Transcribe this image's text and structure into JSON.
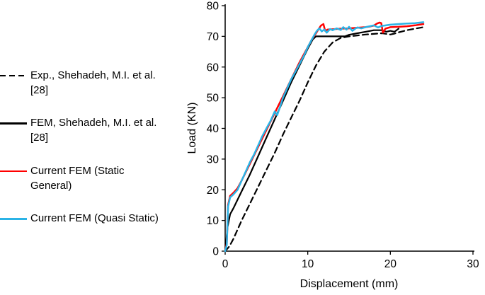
{
  "legend": {
    "items": [
      {
        "label": "Exp., Shehadeh, M.I. et al. [28]",
        "style": "dashed",
        "color": "#000000"
      },
      {
        "label": "FEM, Shehadeh, M.I. et al. [28]",
        "style": "solid",
        "color": "#000000"
      },
      {
        "label": "Current FEM (Static General)",
        "style": "solid",
        "color": "#ff0000"
      },
      {
        "label": "Current FEM (Quasi Static)",
        "style": "solid",
        "color": "#2bb3e6"
      }
    ]
  },
  "chart_data": {
    "type": "line",
    "title": "",
    "xlabel": "Displacement (mm)",
    "ylabel": "Load (KN)",
    "xlim": [
      0,
      30
    ],
    "ylim": [
      0,
      80
    ],
    "xticks": [
      0,
      10,
      20,
      30
    ],
    "yticks": [
      0,
      10,
      20,
      30,
      40,
      50,
      60,
      70,
      80
    ],
    "grid": false,
    "legend_position": "left",
    "series": [
      {
        "name": "Exp., Shehadeh, M.I. et al. [28]",
        "color": "#000000",
        "dash": "8 5",
        "width": 2.2,
        "x": [
          0,
          0.5,
          1,
          2,
          3,
          4,
          5,
          6,
          7,
          8,
          9,
          10,
          11,
          12,
          13,
          14,
          15,
          16,
          17,
          18,
          19,
          20,
          20.5,
          21,
          22,
          23,
          24
        ],
        "y": [
          0,
          1.5,
          4,
          10,
          15.5,
          21,
          26.5,
          32,
          38,
          43.5,
          49,
          55,
          60.5,
          65,
          68,
          69.5,
          70,
          70.3,
          70.6,
          70.8,
          71,
          70.6,
          70.9,
          71.3,
          72,
          72.5,
          73
        ]
      },
      {
        "name": "FEM, Shehadeh, M.I. et al. [28]",
        "color": "#000000",
        "dash": "",
        "width": 2.2,
        "x": [
          0,
          0.3,
          0.6,
          1,
          2,
          3,
          4,
          5,
          6,
          7,
          8,
          9,
          10,
          10.6,
          11,
          14.5,
          15,
          16,
          17,
          18,
          19,
          19.5,
          20,
          20.5,
          21
        ],
        "y": [
          0,
          8,
          12,
          14,
          19.5,
          25,
          31,
          37,
          43,
          49,
          55,
          60.5,
          66,
          69,
          70,
          70,
          70.5,
          71,
          71.5,
          72,
          72,
          71.5,
          71.8,
          71.5,
          72.5
        ]
      },
      {
        "name": "Current FEM (Static General)",
        "color": "#ff0000",
        "dash": "",
        "width": 2.5,
        "x": [
          0,
          0.2,
          0.35,
          0.6,
          1,
          1.5,
          2,
          3,
          4,
          5,
          6,
          7,
          8,
          9,
          10,
          10.5,
          11,
          11.3,
          11.6,
          11.9,
          12.1,
          12.4,
          13,
          14,
          15,
          16,
          17,
          17.5,
          18,
          18.4,
          18.7,
          18.9,
          19.1,
          19.4,
          20,
          21,
          22,
          23,
          24
        ],
        "y": [
          0,
          2.5,
          15,
          18,
          19,
          20.5,
          23,
          28.5,
          34,
          39.5,
          45,
          50.5,
          56,
          61.5,
          66.5,
          69,
          71,
          72.3,
          73.5,
          74,
          71.8,
          72.2,
          72.3,
          72.5,
          72.6,
          72.8,
          73,
          73.2,
          73.5,
          74.2,
          74.5,
          74.3,
          71.2,
          72.5,
          73,
          73.1,
          73.3,
          73.6,
          74
        ]
      },
      {
        "name": "Current FEM (Quasi Static)",
        "color": "#2bb3e6",
        "dash": "",
        "width": 2.5,
        "x": [
          0,
          0.2,
          0.35,
          0.6,
          1,
          1.5,
          2,
          2.5,
          3,
          3.5,
          4,
          4.5,
          5,
          5.5,
          6,
          6.3,
          6.7,
          7,
          7.5,
          8,
          8.5,
          9,
          9.5,
          10,
          10.4,
          10.8,
          11.1,
          11.4,
          11.7,
          12,
          12.3,
          12.7,
          13,
          13.5,
          14,
          14.3,
          14.7,
          15,
          15.4,
          15.8,
          16,
          16.5,
          17,
          17.5,
          18,
          18.5,
          19,
          20,
          21,
          22,
          23,
          24
        ],
        "y": [
          0,
          2,
          14.5,
          17.5,
          18.5,
          20,
          23,
          26,
          29,
          31.5,
          34.5,
          37.5,
          40,
          42.5,
          45.5,
          44.3,
          47.5,
          50,
          53,
          56,
          58.5,
          61,
          63.5,
          66.5,
          68.5,
          70.5,
          71.8,
          72.6,
          71.6,
          72.2,
          71.2,
          72.4,
          72,
          72.6,
          72.1,
          73,
          72.2,
          73.1,
          71.8,
          72.6,
          72.9,
          72.6,
          73,
          73.3,
          73.6,
          72.9,
          73.4,
          73.8,
          74,
          74.2,
          74.3,
          74.6
        ]
      }
    ]
  }
}
